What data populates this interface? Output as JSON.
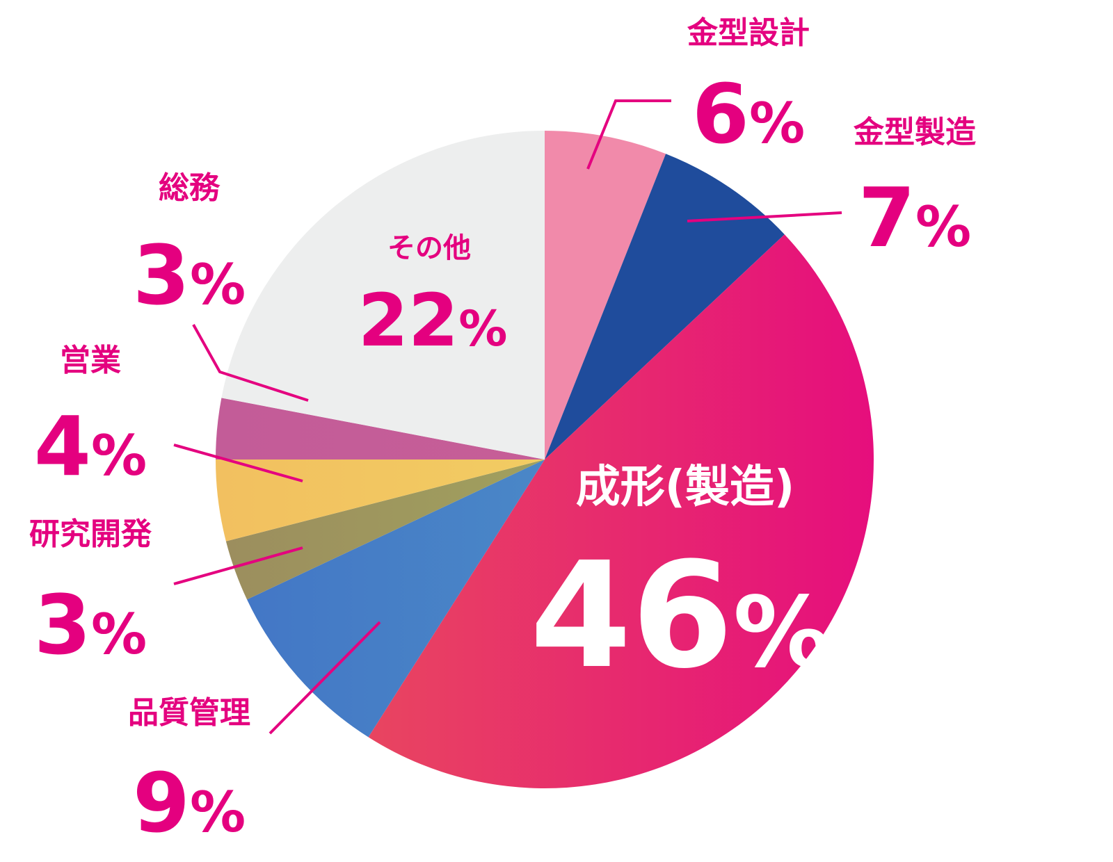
{
  "chart_data": {
    "type": "pie",
    "start_angle_deg": 0,
    "direction": "clockwise",
    "slices": [
      {
        "name": "金型設計",
        "value": 6,
        "color": "#F18AAA",
        "label_color": "#E4007F"
      },
      {
        "name": "金型製造",
        "value": 7,
        "color": "#1F4C9C",
        "label_color": "#E4007F"
      },
      {
        "name": "成形(製造)",
        "value": 46,
        "color": "#E60E7D",
        "gradient_to": "#E84560",
        "label_color": "#FFFFFF"
      },
      {
        "name": "品質管理",
        "value": 9,
        "color": "#4A87C7",
        "gradient_to": "#4377C6",
        "label_color": "#E4007F"
      },
      {
        "name": "研究開発",
        "value": 3,
        "color": "#A0A05E",
        "gradient_to": "#9C8E5E",
        "label_color": "#E4007F"
      },
      {
        "name": "営業",
        "value": 4,
        "color": "#F2CC62",
        "gradient_to": "#F2C060",
        "label_color": "#E4007F"
      },
      {
        "name": "総務",
        "value": 3,
        "color": "#C65E97",
        "gradient_to": "#C35C98",
        "label_color": "#E4007F"
      },
      {
        "name": "その他",
        "value": 22,
        "color": "#EDEEEE",
        "label_color": "#E4007F"
      }
    ],
    "percent_suffix": "%",
    "leader_color": "#E4007F"
  }
}
